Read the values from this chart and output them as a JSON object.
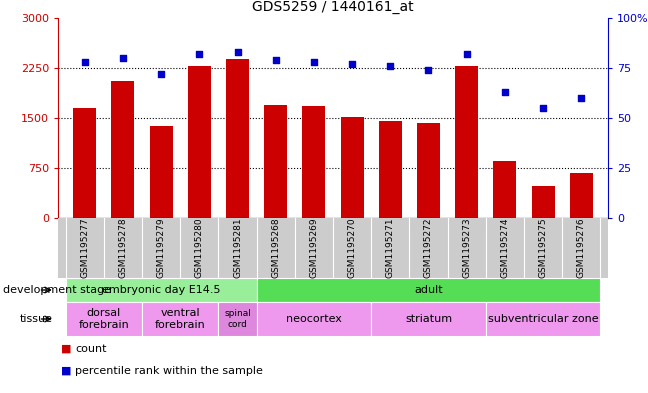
{
  "title": "GDS5259 / 1440161_at",
  "samples": [
    "GSM1195277",
    "GSM1195278",
    "GSM1195279",
    "GSM1195280",
    "GSM1195281",
    "GSM1195268",
    "GSM1195269",
    "GSM1195270",
    "GSM1195271",
    "GSM1195272",
    "GSM1195273",
    "GSM1195274",
    "GSM1195275",
    "GSM1195276"
  ],
  "counts": [
    1650,
    2050,
    1380,
    2280,
    2380,
    1700,
    1680,
    1510,
    1450,
    1420,
    2280,
    850,
    480,
    680
  ],
  "percentiles": [
    78,
    80,
    72,
    82,
    83,
    79,
    78,
    77,
    76,
    74,
    82,
    63,
    55,
    60
  ],
  "ylim_left": [
    0,
    3000
  ],
  "ylim_right": [
    0,
    100
  ],
  "yticks_left": [
    0,
    750,
    1500,
    2250,
    3000
  ],
  "yticks_right": [
    0,
    25,
    50,
    75,
    100
  ],
  "ytick_labels_right": [
    "0",
    "25",
    "50",
    "75",
    "100%"
  ],
  "bar_color": "#cc0000",
  "dot_color": "#0000cc",
  "dev_stage_groups": [
    {
      "label": "embryonic day E14.5",
      "start": 0,
      "end": 5,
      "color": "#99ee99"
    },
    {
      "label": "adult",
      "start": 5,
      "end": 14,
      "color": "#55dd55"
    }
  ],
  "tissue_groups": [
    {
      "label": "dorsal\nforebrain",
      "start": 0,
      "end": 2,
      "color": "#ee99ee"
    },
    {
      "label": "ventral\nforebrain",
      "start": 2,
      "end": 4,
      "color": "#ee99ee"
    },
    {
      "label": "spinal\ncord",
      "start": 4,
      "end": 5,
      "color": "#dd88dd"
    },
    {
      "label": "neocortex",
      "start": 5,
      "end": 8,
      "color": "#ee99ee"
    },
    {
      "label": "striatum",
      "start": 8,
      "end": 11,
      "color": "#ee99ee"
    },
    {
      "label": "subventricular zone",
      "start": 11,
      "end": 14,
      "color": "#ee99ee"
    }
  ]
}
